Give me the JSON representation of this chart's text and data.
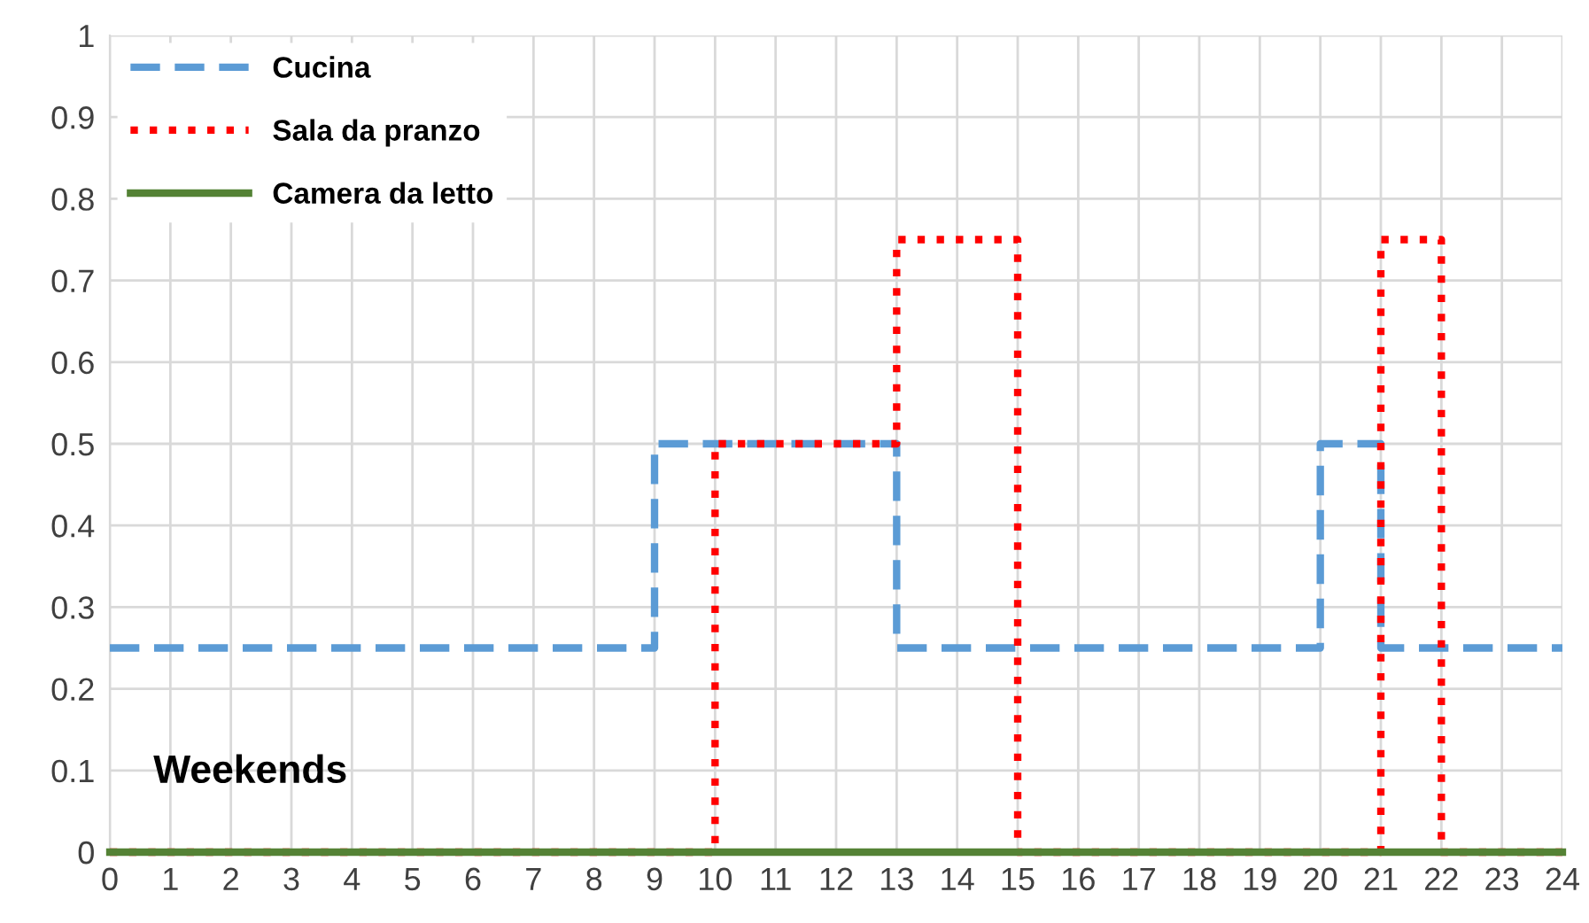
{
  "chart_data": {
    "type": "step",
    "xlim": [
      0,
      24
    ],
    "ylim": [
      0,
      1
    ],
    "xticks": [
      0,
      1,
      2,
      3,
      4,
      5,
      6,
      7,
      8,
      9,
      10,
      11,
      12,
      13,
      14,
      15,
      16,
      17,
      18,
      19,
      20,
      21,
      22,
      23,
      24
    ],
    "yticks": [
      0,
      {
        "value": 0.1,
        "label": "0.1"
      },
      {
        "value": 0.2,
        "label": "0.2"
      },
      {
        "value": 0.3,
        "label": "0.3"
      },
      {
        "value": 0.4,
        "label": "0.4"
      },
      {
        "value": 0.5,
        "label": "0.5"
      },
      {
        "value": 0.6,
        "label": "0.6"
      },
      {
        "value": 0.7,
        "label": "0.7"
      },
      {
        "value": 0.8,
        "label": "0.8"
      },
      {
        "value": 0.9,
        "label": "0.9"
      },
      1
    ],
    "grid": true,
    "legend": "top left",
    "annotations": [
      "Weekends"
    ],
    "series": [
      {
        "name": "Cucina",
        "color": "#5b9bd5",
        "line_style": "dashed",
        "x": [
          0,
          9,
          13,
          20,
          21,
          24
        ],
        "values": [
          0.25,
          0.5,
          0.25,
          0.5,
          0.25,
          0.25
        ]
      },
      {
        "name": "Sala da pranzo",
        "color": "#ff0000",
        "line_style": "dotted",
        "x": [
          0,
          10,
          13,
          15,
          21,
          22,
          24
        ],
        "values": [
          0,
          0.5,
          0.75,
          0,
          0.75,
          0,
          0
        ]
      },
      {
        "name": "Camera da letto",
        "color": "#548235",
        "line_style": "solid",
        "x": [
          0,
          24
        ],
        "values": [
          0,
          0
        ]
      }
    ]
  }
}
